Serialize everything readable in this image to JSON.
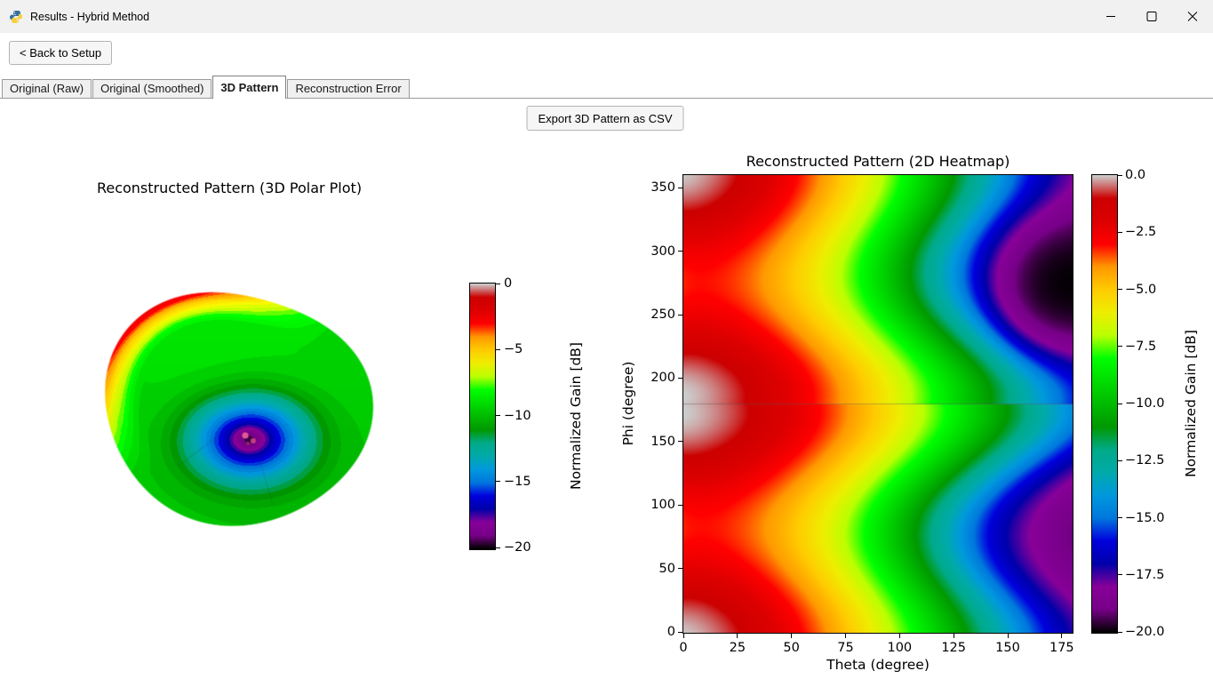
{
  "window": {
    "title": "Results - Hybrid Method"
  },
  "toolbar": {
    "back_label": "< Back to Setup"
  },
  "tabs": [
    {
      "label": "Original (Raw)",
      "selected": false
    },
    {
      "label": "Original (Smoothed)",
      "selected": false
    },
    {
      "label": "3D Pattern",
      "selected": true
    },
    {
      "label": "Reconstruction Error",
      "selected": false
    }
  ],
  "export_label": "Export 3D Pattern as CSV",
  "figures": {
    "polar3d": {
      "title": "Reconstructed Pattern (3D Polar Plot)",
      "colorbar": {
        "label": "Normalized Gain [dB]",
        "ticks": [
          "0",
          "−5",
          "−10",
          "−15",
          "−20"
        ]
      }
    },
    "heatmap": {
      "title": "Reconstructed Pattern (2D Heatmap)",
      "xlabel": "Theta (degree)",
      "ylabel": "Phi (degree)",
      "xticks": [
        "0",
        "25",
        "50",
        "75",
        "100",
        "125",
        "150",
        "175"
      ],
      "yticks": [
        "0",
        "50",
        "100",
        "150",
        "200",
        "250",
        "300",
        "350"
      ],
      "colorbar": {
        "label": "Normalized Gain [dB]",
        "ticks": [
          "0.0",
          "−2.5",
          "−5.0",
          "−7.5",
          "−10.0",
          "−12.5",
          "−15.0",
          "−17.5",
          "−20.0"
        ]
      }
    }
  },
  "chart_data": [
    {
      "type": "surface3d",
      "title": "Reconstructed Pattern (3D Polar Plot)",
      "value_label": "Normalized Gain [dB]",
      "value_range": [
        -20,
        0
      ],
      "colormap": "nipy_spectral",
      "colorbar_ticks": [
        0,
        -5,
        -10,
        -15,
        -20
      ]
    },
    {
      "type": "heatmap",
      "title": "Reconstructed Pattern (2D Heatmap)",
      "xlabel": "Theta (degree)",
      "ylabel": "Phi (degree)",
      "x_range": [
        0,
        180
      ],
      "y_range": [
        0,
        360
      ],
      "xticks": [
        0,
        25,
        50,
        75,
        100,
        125,
        150,
        175
      ],
      "yticks": [
        0,
        50,
        100,
        150,
        200,
        250,
        300,
        350
      ],
      "value_label": "Normalized Gain [dB]",
      "value_range": [
        -20,
        0
      ],
      "colormap": "nipy_spectral",
      "colorbar_ticks": [
        0,
        -2.5,
        -5,
        -7.5,
        -10,
        -12.5,
        -15,
        -17.5,
        -20
      ]
    }
  ]
}
